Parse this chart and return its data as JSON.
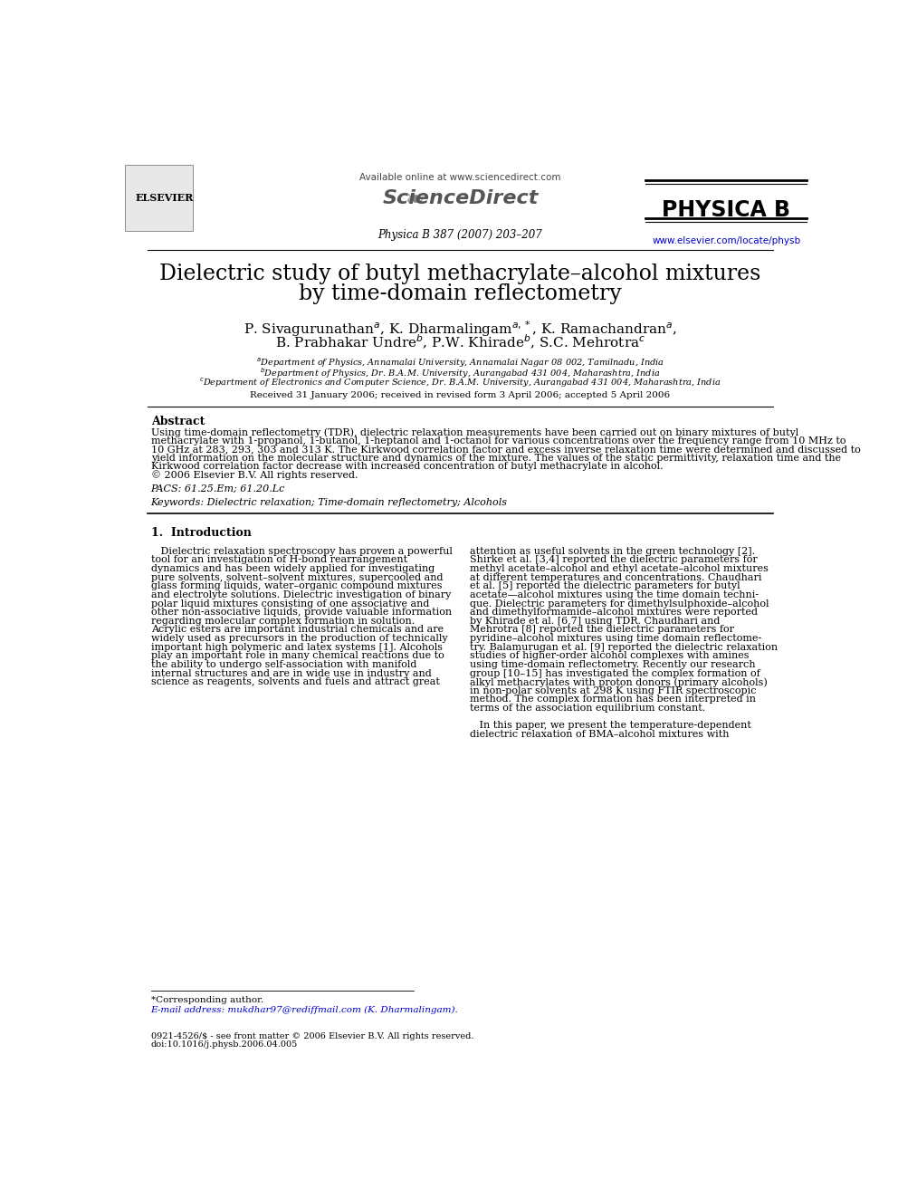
{
  "bg_color": "#ffffff",
  "header_available": "Available online at www.sciencedirect.com",
  "header_journal": "Physica B 387 (2007) 203–207",
  "header_website": "www.elsevier.com/locate/physb",
  "header_website_color": "#0000cc",
  "title_line1": "Dielectric study of butyl methacrylate–alcohol mixtures",
  "title_line2": "by time-domain reflectometry",
  "author_line1": "P. Sivagurunathan$^a$, K. Dharmalingam$^{a,*}$, K. Ramachandran$^a$,",
  "author_line2": "B. Prabhakar Undre$^b$, P.W. Khirade$^b$, S.C. Mehrotra$^c$",
  "aff1": "$^a$Department of Physics, Annamalai University, Annamalai Nagar 08 002, Tamilnadu, India",
  "aff2": "$^b$Department of Physics, Dr. B.A.M. University, Aurangabad 431 004, Maharashtra, India",
  "aff3": "$^c$Department of Electronics and Computer Science, Dr. B.A.M. University, Aurangabad 431 004, Maharashtra, India",
  "received": "Received 31 January 2006; received in revised form 3 April 2006; accepted 5 April 2006",
  "abstract_title": "Abstract",
  "abstract_para": "Using time-domain reflectometry (TDR), dielectric relaxation measurements have been carried out on binary mixtures of butyl\nmethacrylate with 1-propanol, 1-butanol, 1-heptanol and 1-octanol for various concentrations over the frequency range from 10 MHz to\n10 GHz at 283, 293, 303 and 313 K. The Kirkwood correlation factor and excess inverse relaxation time were determined and discussed to\nyield information on the molecular structure and dynamics of the mixture. The values of the static permittivity, relaxation time and the\nKirkwood correlation factor decrease with increased concentration of butyl methacrylate in alcohol.\n© 2006 Elsevier B.V. All rights reserved.",
  "pacs": "PACS: 61.25.Em; 61.20.Lc",
  "keywords": "Keywords: Dielectric relaxation; Time-domain reflectometry; Alcohols",
  "intro_title": "1.  Introduction",
  "intro_left_lines": [
    "   Dielectric relaxation spectroscopy has proven a powerful",
    "tool for an investigation of H-bond rearrangement",
    "dynamics and has been widely applied for investigating",
    "pure solvents, solvent–solvent mixtures, supercooled and",
    "glass forming liquids, water–organic compound mixtures",
    "and electrolyte solutions. Dielectric investigation of binary",
    "polar liquid mixtures consisting of one associative and",
    "other non-associative liquids, provide valuable information",
    "regarding molecular complex formation in solution.",
    "Acrylic esters are important industrial chemicals and are",
    "widely used as precursors in the production of technically",
    "important high polymeric and latex systems [1]. Alcohols",
    "play an important role in many chemical reactions due to",
    "the ability to undergo self-association with manifold",
    "internal structures and are in wide use in industry and",
    "science as reagents, solvents and fuels and attract great"
  ],
  "intro_right_lines": [
    "attention as useful solvents in the green technology [2].",
    "Shirke et al. [3,4] reported the dielectric parameters for",
    "methyl acetate–alcohol and ethyl acetate–alcohol mixtures",
    "at different temperatures and concentrations. Chaudhari",
    "et al. [5] reported the dielectric parameters for butyl",
    "acetate—alcohol mixtures using the time domain techni-",
    "que. Dielectric parameters for dimethylsulphoxide–alcohol",
    "and dimethylformamide–alcohol mixtures were reported",
    "by Khirade et al. [6,7] using TDR. Chaudhari and",
    "Mehrotra [8] reported the dielectric parameters for",
    "pyridine–alcohol mixtures using time domain reflectome-",
    "try. Balamurugan et al. [9] reported the dielectric relaxation",
    "studies of higher-order alcohol complexes with amines",
    "using time-domain reflectometry. Recently our research",
    "group [10–15] has investigated the complex formation of",
    "alkyl methacrylates with proton donors (primary alcohols)",
    "in non-polar solvents at 298 K using FTIR spectroscopic",
    "method. The complex formation has been interpreted in",
    "terms of the association equilibrium constant.",
    "",
    "   In this paper, we present the temperature-dependent",
    "dielectric relaxation of BMA–alcohol mixtures with"
  ],
  "footnote1": "*Corresponding author.",
  "footnote2": "E-mail address: mukdhar97@rediffmail.com (K. Dharmalingam).",
  "footer": "0921-4526/$ - see front matter © 2006 Elsevier B.V. All rights reserved.",
  "footer2": "doi:10.1016/j.physb.2006.04.005"
}
